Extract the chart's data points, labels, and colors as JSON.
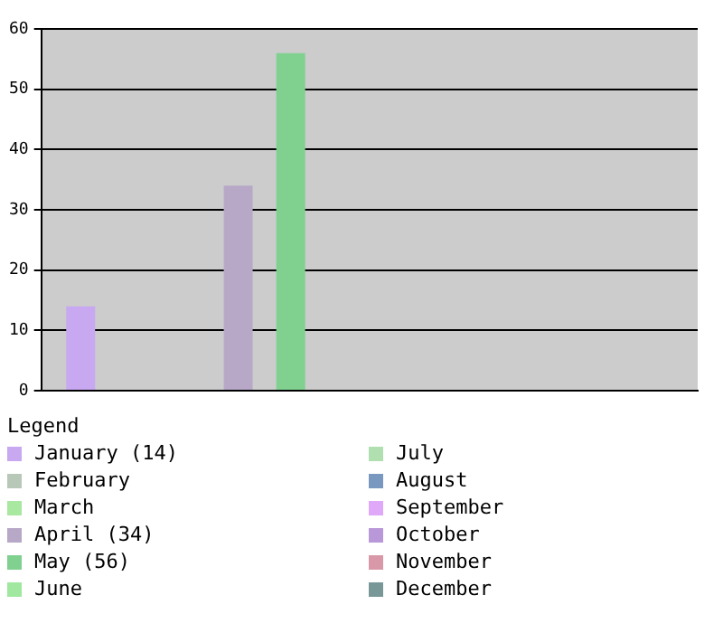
{
  "chart_data": {
    "type": "bar",
    "categories": [
      null
    ],
    "series": [
      {
        "name": "January (14)",
        "color": "#c8a8f0",
        "values": [
          14
        ]
      },
      {
        "name": "February",
        "color": "#b8c8b8",
        "values": [
          0
        ]
      },
      {
        "name": "March",
        "color": "#a8e8a0",
        "values": [
          0
        ]
      },
      {
        "name": "April (34)",
        "color": "#b8a8c8",
        "values": [
          34
        ]
      },
      {
        "name": "May (56)",
        "color": "#80d090",
        "values": [
          56
        ]
      },
      {
        "name": "June",
        "color": "#a0e8a0",
        "values": [
          0
        ]
      },
      {
        "name": "July",
        "color": "#b0e0b0",
        "values": [
          0
        ]
      },
      {
        "name": "August",
        "color": "#7898c0",
        "values": [
          0
        ]
      },
      {
        "name": "September",
        "color": "#e0a8f8",
        "values": [
          0
        ]
      },
      {
        "name": "October",
        "color": "#b898d8",
        "values": [
          0
        ]
      },
      {
        "name": "November",
        "color": "#d898a8",
        "values": [
          0
        ]
      },
      {
        "name": "December",
        "color": "#789898",
        "values": [
          0
        ]
      }
    ],
    "ylim": [
      0,
      60
    ],
    "yticks": [
      0,
      10,
      20,
      30,
      40,
      50,
      60
    ],
    "grid": "y",
    "tick_labels": "y",
    "legend": "bottom",
    "legend_title": "Legend"
  }
}
